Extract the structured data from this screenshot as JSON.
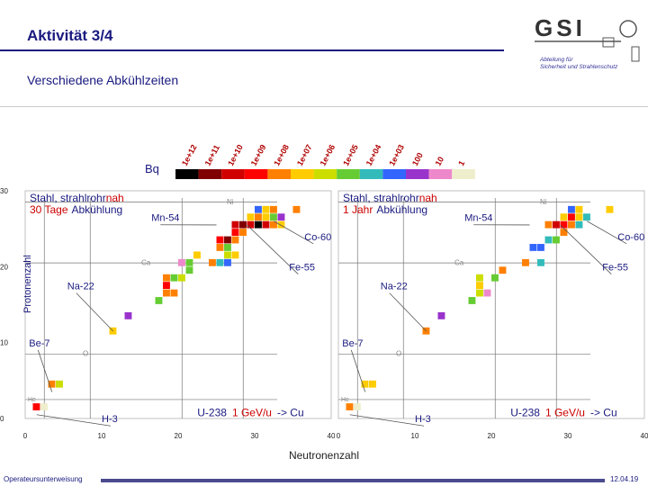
{
  "header": {
    "title": "Aktivität  3/4",
    "subtitle": "Verschiedene Abkühlzeiten",
    "logo_text": "GSI",
    "dept_line1": "Abteilung für",
    "dept_line2": "Sicherheit und Strahlenschutz"
  },
  "footer": {
    "left": "Operateursunterweisung",
    "right": "12.04.19"
  },
  "chart_data": {
    "type": "heatmap",
    "bq_label": "Bq",
    "scale": [
      {
        "label": "1e+12",
        "color": "#000000"
      },
      {
        "label": "1e+11",
        "color": "#800000"
      },
      {
        "label": "1e+10",
        "color": "#d00000"
      },
      {
        "label": "1e+09",
        "color": "#ff0000"
      },
      {
        "label": "1e+08",
        "color": "#ff8000"
      },
      {
        "label": "1e+07",
        "color": "#ffcc00"
      },
      {
        "label": "1e+06",
        "color": "#ccdd00"
      },
      {
        "label": "1e+05",
        "color": "#66cc33"
      },
      {
        "label": "1e+04",
        "color": "#33bbbb"
      },
      {
        "label": "1e+03",
        "color": "#3366ff"
      },
      {
        "label": "100",
        "color": "#9933cc"
      },
      {
        "label": "10",
        "color": "#ee88cc"
      },
      {
        "label": "1",
        "color": "#eeeecc"
      }
    ],
    "xlabel": "Neutronenzahl",
    "ylabel": "Protonenzahl",
    "x_ticks": [
      0,
      10,
      20,
      30,
      40
    ],
    "y_ticks": [
      0,
      10,
      20,
      30
    ],
    "xlim": [
      0,
      40
    ],
    "ylim": [
      0,
      30
    ],
    "panels": [
      {
        "heading": "Stahl, strahlrohrnah",
        "heading_highlight": "nah",
        "cooling_red": "30 Tage",
        "cooling_black": "Abkühlung",
        "beam_prefix": "U-238",
        "beam_red": "1 GeV/u",
        "beam_suffix": "-> Cu",
        "annotations": [
          "Mn-54",
          "Co-60",
          "Fe-55",
          "Na-22",
          "Be-7",
          "H-3"
        ],
        "element_marks": [
          "Ni",
          "Ca",
          "O",
          "He"
        ],
        "cells": [
          {
            "n": 1,
            "z": 1,
            "c": "#ff0000"
          },
          {
            "n": 2,
            "z": 1,
            "c": "#eeeecc"
          },
          {
            "n": 3,
            "z": 4,
            "c": "#ff8000"
          },
          {
            "n": 4,
            "z": 4,
            "c": "#ccdd00"
          },
          {
            "n": 11,
            "z": 11,
            "c": "#ffcc00"
          },
          {
            "n": 13,
            "z": 13,
            "c": "#9933cc"
          },
          {
            "n": 17,
            "z": 15,
            "c": "#66cc33"
          },
          {
            "n": 18,
            "z": 16,
            "c": "#ff8000"
          },
          {
            "n": 19,
            "z": 16,
            "c": "#ff8000"
          },
          {
            "n": 18,
            "z": 17,
            "c": "#ff0000"
          },
          {
            "n": 18,
            "z": 18,
            "c": "#ff8000"
          },
          {
            "n": 19,
            "z": 18,
            "c": "#66cc33"
          },
          {
            "n": 20,
            "z": 18,
            "c": "#ccdd00"
          },
          {
            "n": 21,
            "z": 19,
            "c": "#66cc33"
          },
          {
            "n": 20,
            "z": 20,
            "c": "#ee88cc"
          },
          {
            "n": 21,
            "z": 20,
            "c": "#66cc33"
          },
          {
            "n": 24,
            "z": 20,
            "c": "#ff8000"
          },
          {
            "n": 25,
            "z": 20,
            "c": "#33bbbb"
          },
          {
            "n": 26,
            "z": 20,
            "c": "#3366ff"
          },
          {
            "n": 22,
            "z": 21,
            "c": "#ffcc00"
          },
          {
            "n": 26,
            "z": 21,
            "c": "#ccdd00"
          },
          {
            "n": 27,
            "z": 21,
            "c": "#ffcc00"
          },
          {
            "n": 26,
            "z": 22,
            "c": "#66cc33"
          },
          {
            "n": 25,
            "z": 22,
            "c": "#ff8000"
          },
          {
            "n": 25,
            "z": 23,
            "c": "#ff0000"
          },
          {
            "n": 26,
            "z": 23,
            "c": "#800000"
          },
          {
            "n": 27,
            "z": 23,
            "c": "#ff8000"
          },
          {
            "n": 27,
            "z": 24,
            "c": "#ff0000"
          },
          {
            "n": 28,
            "z": 24,
            "c": "#ff8000"
          },
          {
            "n": 27,
            "z": 25,
            "c": "#d00000"
          },
          {
            "n": 28,
            "z": 25,
            "c": "#800000"
          },
          {
            "n": 29,
            "z": 25,
            "c": "#d00000"
          },
          {
            "n": 30,
            "z": 25,
            "c": "#000000"
          },
          {
            "n": 31,
            "z": 25,
            "c": "#d00000"
          },
          {
            "n": 32,
            "z": 25,
            "c": "#ff8000"
          },
          {
            "n": 33,
            "z": 25,
            "c": "#ffcc00"
          },
          {
            "n": 29,
            "z": 26,
            "c": "#ffcc00"
          },
          {
            "n": 30,
            "z": 26,
            "c": "#ff8000"
          },
          {
            "n": 31,
            "z": 26,
            "c": "#ffcc00"
          },
          {
            "n": 32,
            "z": 26,
            "c": "#66cc33"
          },
          {
            "n": 33,
            "z": 26,
            "c": "#9933cc"
          },
          {
            "n": 30,
            "z": 27,
            "c": "#3366ff"
          },
          {
            "n": 31,
            "z": 27,
            "c": "#ffcc00"
          },
          {
            "n": 32,
            "z": 27,
            "c": "#ff8000"
          },
          {
            "n": 35,
            "z": 27,
            "c": "#ff8000"
          }
        ]
      },
      {
        "heading": "Stahl, strahlrohrnah",
        "heading_highlight": "nah",
        "cooling_red": "1 Jahr",
        "cooling_black": "Abkühlung",
        "beam_prefix": "U-238",
        "beam_red": "1 GeV/u",
        "beam_suffix": "-> Cu",
        "annotations": [
          "Mn-54",
          "Co-60",
          "Fe-55",
          "Na-22",
          "Be-7",
          "H-3"
        ],
        "element_marks": [
          "Ni",
          "Ca",
          "O",
          "He"
        ],
        "cells": [
          {
            "n": 1,
            "z": 1,
            "c": "#ff8000"
          },
          {
            "n": 2,
            "z": 1,
            "c": "#eeeecc"
          },
          {
            "n": 3,
            "z": 4,
            "c": "#ffcc00"
          },
          {
            "n": 4,
            "z": 4,
            "c": "#ffcc00"
          },
          {
            "n": 11,
            "z": 11,
            "c": "#ff8000"
          },
          {
            "n": 13,
            "z": 13,
            "c": "#9933cc"
          },
          {
            "n": 17,
            "z": 15,
            "c": "#66cc33"
          },
          {
            "n": 18,
            "z": 16,
            "c": "#ccdd00"
          },
          {
            "n": 19,
            "z": 16,
            "c": "#ee88cc"
          },
          {
            "n": 18,
            "z": 17,
            "c": "#ffcc00"
          },
          {
            "n": 18,
            "z": 18,
            "c": "#ccdd00"
          },
          {
            "n": 20,
            "z": 18,
            "c": "#66cc33"
          },
          {
            "n": 21,
            "z": 19,
            "c": "#ff8000"
          },
          {
            "n": 24,
            "z": 20,
            "c": "#ff8000"
          },
          {
            "n": 26,
            "z": 20,
            "c": "#33bbbb"
          },
          {
            "n": 25,
            "z": 22,
            "c": "#3366ff"
          },
          {
            "n": 26,
            "z": 22,
            "c": "#3366ff"
          },
          {
            "n": 27,
            "z": 23,
            "c": "#33bbbb"
          },
          {
            "n": 28,
            "z": 23,
            "c": "#66cc33"
          },
          {
            "n": 29,
            "z": 24,
            "c": "#ff8000"
          },
          {
            "n": 27,
            "z": 25,
            "c": "#ff8000"
          },
          {
            "n": 28,
            "z": 25,
            "c": "#d00000"
          },
          {
            "n": 29,
            "z": 25,
            "c": "#ff0000"
          },
          {
            "n": 30,
            "z": 25,
            "c": "#ff8000"
          },
          {
            "n": 31,
            "z": 25,
            "c": "#33bbbb"
          },
          {
            "n": 29,
            "z": 26,
            "c": "#ffcc00"
          },
          {
            "n": 30,
            "z": 26,
            "c": "#ff0000"
          },
          {
            "n": 31,
            "z": 26,
            "c": "#ffcc00"
          },
          {
            "n": 32,
            "z": 26,
            "c": "#33bbbb"
          },
          {
            "n": 30,
            "z": 27,
            "c": "#3366ff"
          },
          {
            "n": 31,
            "z": 27,
            "c": "#ffcc00"
          },
          {
            "n": 35,
            "z": 27,
            "c": "#ffcc00"
          }
        ]
      }
    ]
  }
}
